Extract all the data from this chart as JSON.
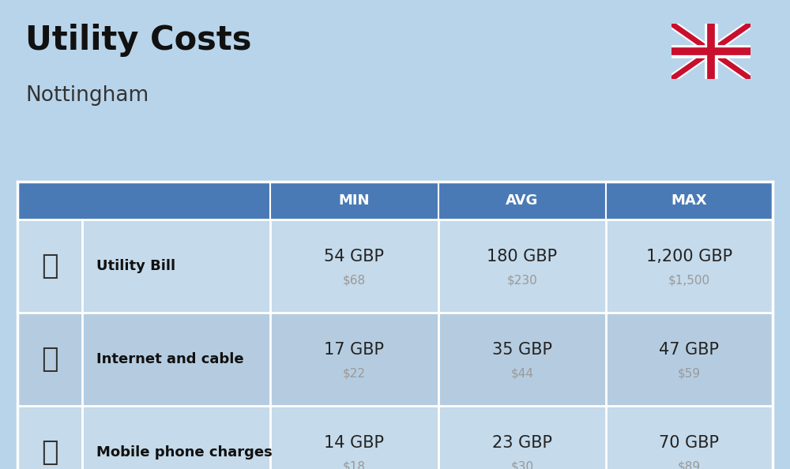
{
  "title": "Utility Costs",
  "subtitle": "Nottingham",
  "background_color": "#b8d4ea",
  "table_header_color": "#4a7ab5",
  "table_row_odd": "#c5daea",
  "table_row_even": "#b5cce0",
  "header_text_color": "#ffffff",
  "row_label_color": "#111111",
  "value_color": "#222222",
  "usd_color": "#999999",
  "rows": [
    {
      "label": "Utility Bill",
      "min_gbp": "54 GBP",
      "min_usd": "$68",
      "avg_gbp": "180 GBP",
      "avg_usd": "$230",
      "max_gbp": "1,200 GBP",
      "max_usd": "$1,500"
    },
    {
      "label": "Internet and cable",
      "min_gbp": "17 GBP",
      "min_usd": "$22",
      "avg_gbp": "35 GBP",
      "avg_usd": "$44",
      "max_gbp": "47 GBP",
      "max_usd": "$59"
    },
    {
      "label": "Mobile phone charges",
      "min_gbp": "14 GBP",
      "min_usd": "$18",
      "avg_gbp": "23 GBP",
      "avg_usd": "$30",
      "max_gbp": "70 GBP",
      "max_usd": "$89"
    }
  ],
  "title_fontsize": 30,
  "subtitle_fontsize": 19,
  "header_fontsize": 13,
  "row_label_fontsize": 13,
  "value_fontsize": 15,
  "usd_fontsize": 11,
  "fig_width": 10.0,
  "fig_height": 5.94,
  "dpi": 100
}
